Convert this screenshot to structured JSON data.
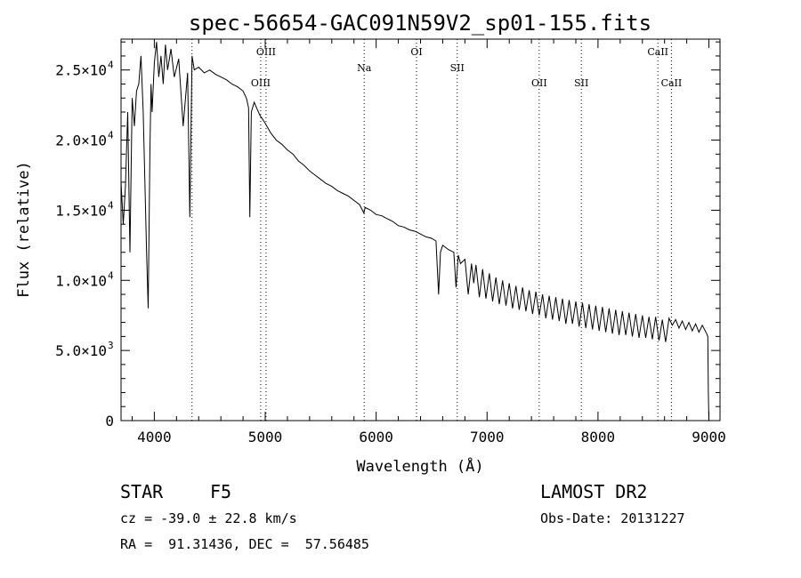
{
  "chart_data": {
    "type": "line",
    "title": "spec-56654-GAC091N59V2_sp01-155.fits",
    "xlabel": "Wavelength (Å)",
    "ylabel": "Flux (relative)",
    "xlim": [
      3700,
      9100
    ],
    "ylim": [
      0,
      27200
    ],
    "x_ticks": [
      4000,
      5000,
      6000,
      7000,
      8000,
      9000
    ],
    "x_tick_labels": [
      "4000",
      "5000",
      "6000",
      "7000",
      "8000",
      "9000"
    ],
    "y_ticks": [
      0,
      5000,
      10000,
      15000,
      20000,
      25000
    ],
    "y_tick_labels": [
      {
        "mant": "0",
        "exp": ""
      },
      {
        "mant": "5.0×10",
        "exp": "3"
      },
      {
        "mant": "1.0×10",
        "exp": "4"
      },
      {
        "mant": "1.5×10",
        "exp": "4"
      },
      {
        "mant": "2.0×10",
        "exp": "4"
      },
      {
        "mant": "2.5×10",
        "exp": "4"
      }
    ],
    "grid": false,
    "series": [
      {
        "x": [
          3700,
          3720,
          3740,
          3760,
          3780,
          3800,
          3820,
          3840,
          3860,
          3880,
          3900,
          3915,
          3930,
          3945,
          3960,
          3970,
          3980,
          4000,
          4020,
          4040,
          4060,
          4080,
          4100,
          4120,
          4150,
          4180,
          4220,
          4260,
          4300,
          4320,
          4340,
          4360,
          4400,
          4450,
          4500,
          4550,
          4600,
          4650,
          4700,
          4750,
          4800,
          4830,
          4850,
          4861,
          4875,
          4900,
          4950,
          5000,
          5050,
          5100,
          5150,
          5200,
          5250,
          5300,
          5350,
          5400,
          5450,
          5500,
          5550,
          5600,
          5650,
          5700,
          5750,
          5800,
          5850,
          5890,
          5900,
          5950,
          6000,
          6050,
          6100,
          6150,
          6200,
          6250,
          6300,
          6350,
          6400,
          6450,
          6500,
          6540,
          6563,
          6580,
          6600,
          6650,
          6700,
          6720,
          6740,
          6760,
          6800,
          6830,
          6860,
          6880,
          6900,
          6930,
          6960,
          6990,
          7020,
          7050,
          7080,
          7110,
          7140,
          7170,
          7200,
          7230,
          7260,
          7290,
          7320,
          7350,
          7380,
          7410,
          7440,
          7470,
          7500,
          7530,
          7560,
          7590,
          7620,
          7650,
          7680,
          7710,
          7740,
          7770,
          7800,
          7830,
          7860,
          7890,
          7920,
          7950,
          7980,
          8010,
          8040,
          8070,
          8100,
          8130,
          8160,
          8190,
          8220,
          8250,
          8280,
          8310,
          8340,
          8370,
          8400,
          8430,
          8460,
          8490,
          8520,
          8550,
          8580,
          8610,
          8640,
          8670,
          8700,
          8730,
          8760,
          8790,
          8820,
          8850,
          8880,
          8910,
          8940,
          8960,
          8980,
          8990,
          8995,
          9000
        ],
        "y": [
          17000,
          14000,
          16800,
          22000,
          12000,
          23000,
          21000,
          23500,
          24000,
          26000,
          22000,
          17000,
          12000,
          8000,
          19000,
          24000,
          22000,
          25500,
          27000,
          24500,
          26000,
          24000,
          26800,
          25000,
          26500,
          24500,
          25800,
          21000,
          24800,
          14500,
          26000,
          25000,
          25200,
          24800,
          25000,
          24700,
          24500,
          24300,
          24000,
          23800,
          23500,
          23000,
          22300,
          14500,
          22000,
          22700,
          21800,
          21200,
          20500,
          20000,
          19700,
          19300,
          19000,
          18500,
          18200,
          17800,
          17500,
          17200,
          16900,
          16700,
          16400,
          16200,
          16000,
          15700,
          15400,
          14800,
          15200,
          15000,
          14700,
          14600,
          14400,
          14200,
          13900,
          13800,
          13600,
          13500,
          13300,
          13100,
          13000,
          12800,
          9000,
          12000,
          12500,
          12200,
          12000,
          9500,
          11800,
          11200,
          11500,
          9000,
          11200,
          9800,
          11100,
          8800,
          10800,
          8700,
          10500,
          8500,
          10200,
          8300,
          10000,
          8200,
          9800,
          8000,
          9600,
          7900,
          9500,
          7800,
          9300,
          7600,
          9200,
          7500,
          9000,
          7300,
          8900,
          7200,
          8800,
          7100,
          8700,
          6900,
          8600,
          6900,
          8500,
          6700,
          8400,
          6600,
          8300,
          6500,
          8200,
          6400,
          8100,
          6300,
          8000,
          6200,
          7900,
          6100,
          7800,
          6100,
          7700,
          6000,
          7600,
          5900,
          7500,
          5900,
          7400,
          5800,
          7400,
          5700,
          7200,
          5600,
          7300,
          6800,
          7200,
          6600,
          7100,
          6500,
          7000,
          6400,
          6900,
          6300,
          6800,
          6500,
          6200,
          6000,
          2000,
          0
        ]
      }
    ],
    "line_annotations": [
      {
        "x": 4340,
        "label": ""
      },
      {
        "x": 4959,
        "label": "OIII",
        "row": 2
      },
      {
        "x": 5007,
        "label": "OIII",
        "row": 0
      },
      {
        "x": 5892,
        "label": "Na",
        "row": 1
      },
      {
        "x": 6364,
        "label": "OI",
        "row": 0
      },
      {
        "x": 6731,
        "label": "SII",
        "row": 1
      },
      {
        "x": 7470,
        "label": "OII",
        "row": 2
      },
      {
        "x": 7850,
        "label": "SII",
        "row": 2
      },
      {
        "x": 8540,
        "label": "CaII",
        "row": 0
      },
      {
        "x": 8662,
        "label": "CaII",
        "row": 2
      }
    ]
  },
  "info": {
    "class_label": "STAR",
    "subclass": "F5",
    "survey": "LAMOST DR2",
    "cz": "cz = -39.0 ± 22.8 km/s",
    "obs_date": "Obs-Date: 20131227",
    "radec": "RA =  91.31436, DEC =  57.56485"
  }
}
